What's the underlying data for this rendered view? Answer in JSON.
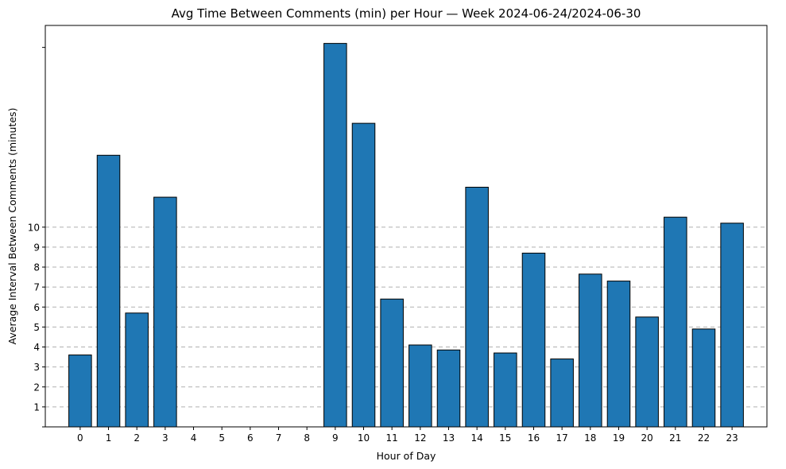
{
  "chart_data": {
    "type": "bar",
    "title": "Avg Time Between Comments (min) per Hour — Week 2024-06-24/2024-06-30",
    "xlabel": "Hour of Day",
    "ylabel": "Average Interval Between Comments (minutes)",
    "categories": [
      "0",
      "1",
      "2",
      "3",
      "4",
      "5",
      "6",
      "7",
      "8",
      "9",
      "10",
      "11",
      "12",
      "13",
      "14",
      "15",
      "16",
      "17",
      "18",
      "19",
      "20",
      "21",
      "22",
      "23"
    ],
    "values": [
      3.6,
      13.6,
      5.7,
      11.5,
      0,
      0,
      0,
      0,
      0,
      19.2,
      15.2,
      6.4,
      4.1,
      3.85,
      12.0,
      3.7,
      8.7,
      3.4,
      7.65,
      7.3,
      5.5,
      10.5,
      4.9,
      10.2
    ],
    "yticks": [
      1,
      2,
      3,
      4,
      5,
      6,
      7,
      8,
      9,
      10
    ],
    "ylim": [
      0,
      20.1
    ],
    "grid": "y-dashed",
    "colors": {
      "bar": "#1f77b4",
      "edge": "#000000",
      "grid": "#b0b0b0"
    }
  }
}
